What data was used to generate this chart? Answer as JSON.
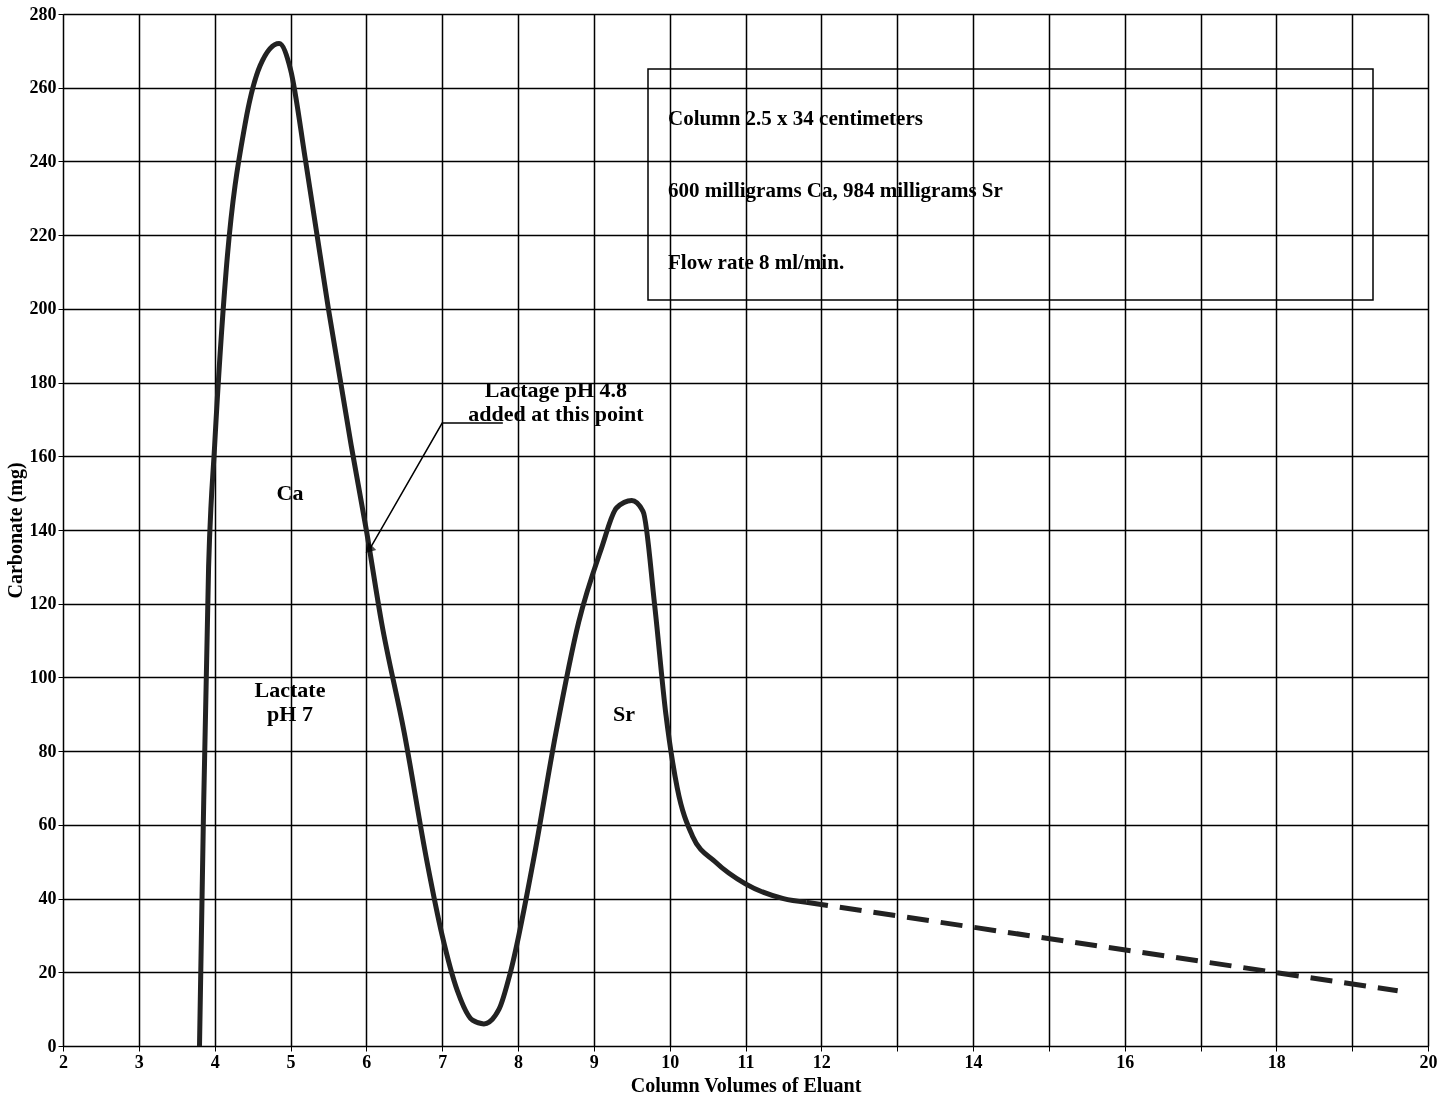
{
  "chart_data": {
    "type": "line",
    "xlabel": "Column Volumes of Eluant",
    "ylabel": "Carbonate (mg)",
    "xlim": [
      2,
      20
    ],
    "ylim": [
      0,
      280
    ],
    "xticks": [
      2,
      3,
      4,
      5,
      6,
      7,
      8,
      9,
      10,
      11,
      12,
      {
        "value": 13,
        "label": null
      },
      14,
      {
        "value": 15,
        "label": null
      },
      16,
      {
        "value": 17,
        "label": null
      },
      18,
      {
        "value": 19,
        "label": null
      },
      20
    ],
    "yticks": [
      0,
      20,
      40,
      60,
      80,
      100,
      120,
      140,
      160,
      180,
      200,
      220,
      240,
      260,
      280
    ],
    "grid": true,
    "marker": "none",
    "series": [
      {
        "color": "#222222",
        "line_style": "solid",
        "x": [
          3.8,
          3.85,
          3.92,
          4.0,
          4.15,
          4.4,
          4.6,
          4.85,
          5.0,
          5.2,
          5.5,
          5.8,
          6.0,
          6.2,
          6.5,
          6.8,
          7.0,
          7.2,
          7.4,
          7.55,
          7.75,
          7.9,
          8.2,
          8.5,
          8.8,
          9.1,
          9.3,
          9.5,
          9.65,
          9.8,
          9.95,
          10.1,
          10.3,
          10.6,
          11.0,
          11.5,
          11.8
        ],
        "values": [
          0,
          60,
          130,
          163,
          210,
          250,
          266,
          272,
          265,
          240,
          200,
          163,
          140,
          115,
          85,
          50,
          30,
          15,
          7,
          6,
          10,
          20,
          50,
          85,
          115,
          135,
          146,
          148,
          145,
          120,
          90,
          70,
          57,
          50,
          44,
          40,
          39
        ]
      },
      {
        "color": "#222222",
        "line_style": "dashed",
        "x": [
          11.8,
          19.6
        ],
        "values": [
          39,
          15
        ]
      }
    ],
    "annotations": [
      "Column 2.5 x 34 centimeters",
      "600 milligrams Ca, 984 milligrams Sr",
      "Flow rate 8 ml/min.",
      "Ca",
      "Lactate\npH 7",
      "Sr",
      {
        "text": "Lactage pH 4.8\nadded at this point",
        "x": 6.05,
        "y": 135
      }
    ]
  }
}
